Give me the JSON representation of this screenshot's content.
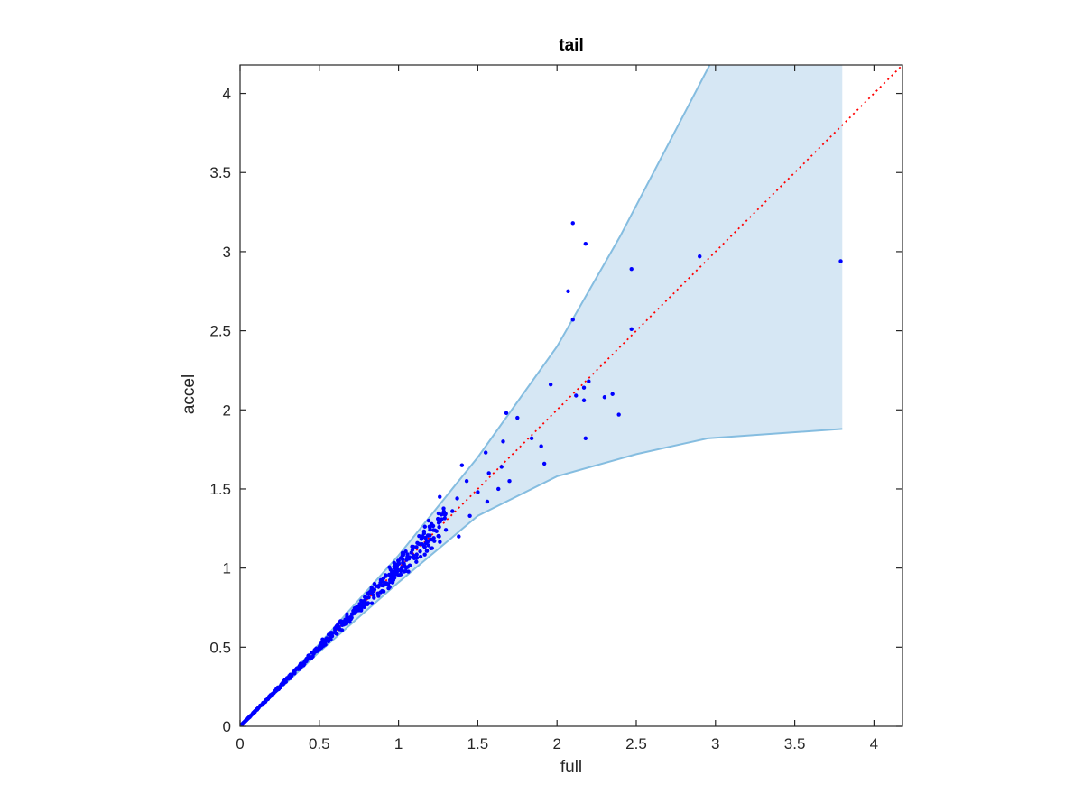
{
  "chart_data": {
    "type": "scatter",
    "title": "tail",
    "xlabel": "full",
    "ylabel": "accel",
    "xlim": [
      0,
      4.18
    ],
    "ylim": [
      0,
      4.18
    ],
    "x_ticks": [
      "0",
      "0.5",
      "1",
      "1.5",
      "2",
      "2.5",
      "3",
      "3.5",
      "4"
    ],
    "y_ticks": [
      "0",
      "0.5",
      "1",
      "1.5",
      "2",
      "2.5",
      "3",
      "3.5",
      "4"
    ],
    "grid": false,
    "band": {
      "upper": [
        [
          0,
          0
        ],
        [
          0.5,
          0.52
        ],
        [
          1,
          1.08
        ],
        [
          1.5,
          1.7
        ],
        [
          2,
          2.4
        ],
        [
          2.4,
          3.1
        ],
        [
          3,
          4.25
        ],
        [
          3.8,
          4.25
        ]
      ],
      "lower": [
        [
          0,
          0
        ],
        [
          0.5,
          0.47
        ],
        [
          1,
          0.91
        ],
        [
          1.5,
          1.33
        ],
        [
          2,
          1.58
        ],
        [
          2.5,
          1.72
        ],
        [
          2.95,
          1.82
        ],
        [
          3.8,
          1.88
        ]
      ]
    },
    "reference_line": {
      "from": [
        0,
        0
      ],
      "to": [
        4.18,
        4.18
      ]
    },
    "series": [
      {
        "points": [
          [
            2.1,
            3.18
          ],
          [
            2.18,
            3.05
          ],
          [
            2.07,
            2.75
          ],
          [
            2.1,
            2.57
          ],
          [
            2.47,
            2.89
          ],
          [
            2.9,
            2.97
          ],
          [
            3.79,
            2.94
          ],
          [
            2.47,
            2.51
          ],
          [
            1.96,
            2.16
          ],
          [
            2.12,
            2.09
          ],
          [
            2.17,
            2.14
          ],
          [
            2.2,
            2.18
          ],
          [
            2.17,
            2.06
          ],
          [
            2.3,
            2.08
          ],
          [
            2.35,
            2.1
          ],
          [
            2.39,
            1.97
          ],
          [
            1.66,
            1.8
          ],
          [
            1.68,
            1.98
          ],
          [
            1.75,
            1.95
          ],
          [
            1.84,
            1.82
          ],
          [
            1.9,
            1.77
          ],
          [
            1.92,
            1.66
          ],
          [
            2.18,
            1.82
          ],
          [
            1.4,
            1.65
          ],
          [
            1.55,
            1.73
          ],
          [
            1.57,
            1.6
          ],
          [
            1.63,
            1.5
          ],
          [
            1.7,
            1.55
          ],
          [
            1.45,
            1.33
          ],
          [
            1.5,
            1.48
          ],
          [
            1.56,
            1.42
          ],
          [
            1.26,
            1.45
          ],
          [
            1.34,
            1.36
          ],
          [
            1.19,
            1.3
          ],
          [
            1.38,
            1.2
          ],
          [
            1.37,
            1.44
          ],
          [
            1.43,
            1.55
          ],
          [
            1.65,
            1.64
          ]
        ]
      }
    ],
    "colors": {
      "points": "#0000ff",
      "band_fill": "#d6e7f4",
      "band_edge": "#85bde0",
      "reference_line": "#ff0000",
      "axes": "#262626"
    }
  }
}
